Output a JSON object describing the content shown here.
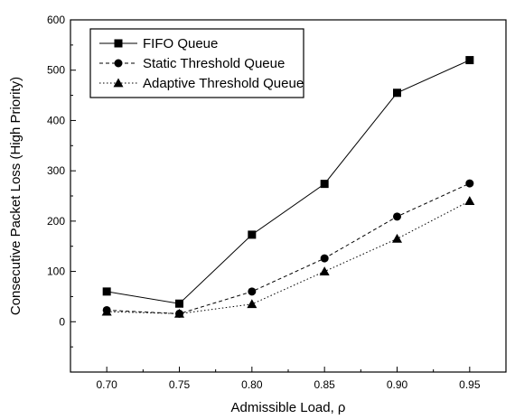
{
  "chart_data": {
    "type": "line",
    "title": "",
    "xlabel": "Admissible Load, ρ",
    "ylabel": "Consecutive Packet Loss (High Priority)",
    "x": [
      0.7,
      0.75,
      0.8,
      0.85,
      0.9,
      0.95
    ],
    "x_tick_labels": [
      "0.70",
      "0.75",
      "0.80",
      "0.85",
      "0.90",
      "0.95"
    ],
    "xlim": [
      0.675,
      0.975
    ],
    "ylim": [
      -100,
      600
    ],
    "y_ticks": [
      0,
      100,
      200,
      300,
      400,
      500,
      600
    ],
    "y_tick_labels": [
      "0",
      "100",
      "200",
      "300",
      "400",
      "500",
      "600"
    ],
    "grid": false,
    "legend_position": "top-left",
    "series": [
      {
        "name": "FIFO Queue",
        "marker": "square",
        "line_style": "solid",
        "values": [
          60,
          36,
          173,
          274,
          455,
          520
        ]
      },
      {
        "name": "Static Threshold Queue",
        "marker": "circle",
        "line_style": "dashed",
        "values": [
          23,
          16,
          60,
          126,
          209,
          275
        ]
      },
      {
        "name": "Adaptive Threshold Queue",
        "marker": "triangle",
        "line_style": "dotted",
        "values": [
          20,
          16,
          35,
          100,
          165,
          240
        ]
      }
    ]
  }
}
